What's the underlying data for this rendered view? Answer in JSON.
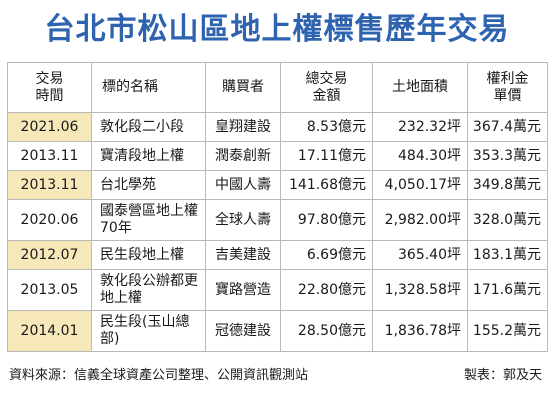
{
  "title": "台北市松山區地上權標售歷年交易",
  "headers": {
    "time": "交易\n時間",
    "name": "標的名稱",
    "buyer": "購買者",
    "total": "總交易\n金額",
    "area": "土地面積",
    "unit": "權利金\n單價"
  },
  "rows": [
    {
      "time": "2021.06",
      "name": "敦化段二小段",
      "buyer": "皇翔建設",
      "total": "8.53億元",
      "area": "232.32坪",
      "unit": "367.4萬元"
    },
    {
      "time": "2013.11",
      "name": "寶清段地上權",
      "buyer": "潤泰創新",
      "total": "17.11億元",
      "area": "484.30坪",
      "unit": "353.3萬元"
    },
    {
      "time": "2013.11",
      "name": "台北學苑",
      "buyer": "中國人壽",
      "total": "141.68億元",
      "area": "4,050.17坪",
      "unit": "349.8萬元"
    },
    {
      "time": "2020.06",
      "name": "國泰營區地上權70年",
      "buyer": "全球人壽",
      "total": "97.80億元",
      "area": "2,982.00坪",
      "unit": "328.0萬元"
    },
    {
      "time": "2012.07",
      "name": "民生段地上權",
      "buyer": "吉美建設",
      "total": "6.69億元",
      "area": "365.40坪",
      "unit": "183.1萬元"
    },
    {
      "time": "2013.05",
      "name": "敦化段公辦都更地上權",
      "buyer": "寶路營造",
      "total": "22.80億元",
      "area": "1,328.58坪",
      "unit": "171.6萬元"
    },
    {
      "time": "2014.01",
      "name": "民生段(玉山總部)",
      "buyer": "冠德建設",
      "total": "28.50億元",
      "area": "1,836.78坪",
      "unit": "155.2萬元"
    }
  ],
  "source": "資料來源：信義全球資產公司整理、公開資訊觀測站",
  "credit": "製表：郭及天"
}
